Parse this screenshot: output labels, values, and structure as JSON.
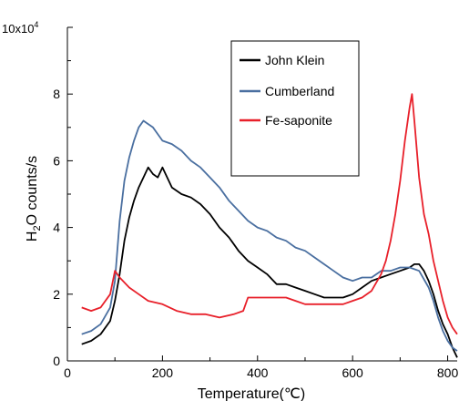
{
  "chart_data": {
    "type": "line",
    "title": "",
    "xlabel": "Temperature(℃)",
    "ylabel_main": "H",
    "ylabel_sub": "2",
    "ylabel_rest": "O counts/s",
    "y_multiplier_base": "10x10",
    "y_multiplier_exp": "4",
    "xlim": [
      0,
      820
    ],
    "ylim": [
      0,
      10
    ],
    "x_ticks": [
      0,
      200,
      400,
      600,
      800
    ],
    "y_ticks": [
      0,
      2,
      4,
      6,
      8
    ],
    "grid": false,
    "legend_position": "top-right",
    "series": [
      {
        "name": "John Klein",
        "color": "#000000",
        "x": [
          30,
          50,
          70,
          90,
          100,
          110,
          120,
          130,
          140,
          150,
          160,
          170,
          180,
          190,
          200,
          210,
          220,
          240,
          260,
          280,
          300,
          320,
          340,
          360,
          380,
          400,
          420,
          440,
          460,
          480,
          500,
          520,
          540,
          560,
          580,
          600,
          620,
          640,
          660,
          680,
          700,
          720,
          730,
          740,
          750,
          760,
          770,
          780,
          790,
          800,
          810,
          820
        ],
        "y": [
          0.5,
          0.6,
          0.8,
          1.2,
          1.8,
          2.6,
          3.6,
          4.3,
          4.8,
          5.2,
          5.5,
          5.8,
          5.6,
          5.5,
          5.8,
          5.5,
          5.2,
          5.0,
          4.9,
          4.7,
          4.4,
          4.0,
          3.7,
          3.3,
          3.0,
          2.8,
          2.6,
          2.3,
          2.3,
          2.2,
          2.1,
          2.0,
          1.9,
          1.9,
          1.9,
          2.0,
          2.2,
          2.4,
          2.5,
          2.6,
          2.7,
          2.8,
          2.9,
          2.9,
          2.7,
          2.4,
          2.0,
          1.5,
          1.1,
          0.8,
          0.4,
          0.1
        ]
      },
      {
        "name": "Cumberland",
        "color": "#4a6fa0",
        "x": [
          30,
          50,
          70,
          90,
          100,
          110,
          120,
          130,
          140,
          150,
          160,
          170,
          180,
          190,
          200,
          220,
          240,
          260,
          280,
          300,
          320,
          340,
          360,
          380,
          400,
          420,
          440,
          460,
          480,
          500,
          520,
          540,
          560,
          580,
          600,
          620,
          640,
          660,
          680,
          700,
          720,
          740,
          760,
          770,
          780,
          790,
          800,
          810,
          820
        ],
        "y": [
          0.8,
          0.9,
          1.1,
          1.6,
          2.4,
          4.2,
          5.4,
          6.1,
          6.6,
          7.0,
          7.2,
          7.1,
          7.0,
          6.8,
          6.6,
          6.5,
          6.3,
          6.0,
          5.8,
          5.5,
          5.2,
          4.8,
          4.5,
          4.2,
          4.0,
          3.9,
          3.7,
          3.6,
          3.4,
          3.3,
          3.1,
          2.9,
          2.7,
          2.5,
          2.4,
          2.5,
          2.5,
          2.7,
          2.7,
          2.8,
          2.8,
          2.7,
          2.2,
          1.8,
          1.3,
          0.9,
          0.6,
          0.4,
          0.3
        ]
      },
      {
        "name": "Fe-saponite",
        "color": "#e8202a",
        "x": [
          30,
          50,
          70,
          90,
          100,
          110,
          130,
          150,
          170,
          200,
          230,
          260,
          290,
          320,
          350,
          370,
          380,
          400,
          420,
          440,
          460,
          480,
          500,
          520,
          540,
          560,
          580,
          600,
          620,
          640,
          660,
          670,
          680,
          690,
          700,
          710,
          720,
          725,
          730,
          740,
          750,
          760,
          770,
          780,
          790,
          800,
          810,
          820
        ],
        "y": [
          1.6,
          1.5,
          1.6,
          2.0,
          2.7,
          2.5,
          2.2,
          2.0,
          1.8,
          1.7,
          1.5,
          1.4,
          1.4,
          1.3,
          1.4,
          1.5,
          1.9,
          1.9,
          1.9,
          1.9,
          1.9,
          1.8,
          1.7,
          1.7,
          1.7,
          1.7,
          1.7,
          1.8,
          1.9,
          2.1,
          2.6,
          3.0,
          3.6,
          4.4,
          5.4,
          6.6,
          7.6,
          8.0,
          7.2,
          5.5,
          4.4,
          3.8,
          3.0,
          2.4,
          1.8,
          1.3,
          1.0,
          0.8
        ]
      }
    ]
  }
}
